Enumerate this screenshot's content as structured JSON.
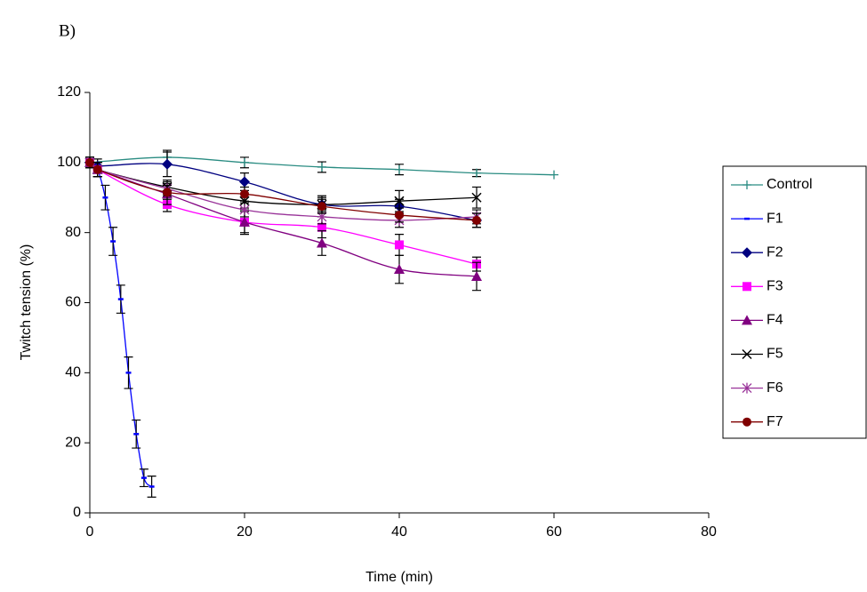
{
  "chart_data": {
    "type": "line",
    "panel_label": "B)",
    "x_label": "Time (min)",
    "y_label": "Twitch tension (%)",
    "xlim": [
      0,
      80
    ],
    "xticks": [
      0,
      20,
      40,
      60,
      80
    ],
    "ylim": [
      0,
      120
    ],
    "yticks": [
      0,
      20,
      40,
      60,
      80,
      100,
      120
    ],
    "legend": "right",
    "series": [
      {
        "name": "Control",
        "color": "#2a8c82",
        "marker": "plus",
        "x": [
          0,
          10,
          20,
          30,
          40,
          50,
          60
        ],
        "values": [
          100,
          101.5,
          100,
          98.7,
          98,
          97,
          96.5
        ],
        "errors": [
          1.5,
          2,
          1.5,
          1.5,
          1.5,
          1,
          null
        ]
      },
      {
        "name": "F1",
        "color": "#0000ff",
        "marker": "dash",
        "x": [
          0,
          1,
          2,
          3,
          4,
          5,
          6,
          7,
          8
        ],
        "values": [
          100,
          98,
          90,
          77.5,
          61,
          40,
          22.5,
          10,
          7.5
        ],
        "errors": [
          1.5,
          2,
          3.5,
          4,
          4,
          4.5,
          4,
          2.5,
          3
        ]
      },
      {
        "name": "F2",
        "color": "#000080",
        "marker": "diamond",
        "x": [
          0,
          1,
          10,
          20,
          30,
          40,
          50
        ],
        "values": [
          100,
          99,
          99.5,
          94.5,
          88,
          87.5,
          83.5
        ],
        "errors": [
          1.5,
          2,
          3.5,
          2.5,
          2,
          2,
          2
        ]
      },
      {
        "name": "F3",
        "color": "#ff00ff",
        "marker": "square",
        "x": [
          0,
          1,
          10,
          20,
          30,
          40,
          50
        ],
        "values": [
          100,
          98,
          88,
          83,
          81.5,
          76.5,
          71
        ],
        "errors": [
          1.5,
          2,
          2,
          3,
          3,
          3,
          2
        ]
      },
      {
        "name": "F4",
        "color": "#800080",
        "marker": "triangle",
        "x": [
          0,
          1,
          10,
          20,
          30,
          40,
          50
        ],
        "values": [
          100,
          98,
          91,
          83,
          77,
          69.5,
          67.5
        ],
        "errors": [
          1.5,
          2,
          3,
          3.5,
          3.5,
          4,
          4
        ]
      },
      {
        "name": "F5",
        "color": "#000000",
        "marker": "x",
        "x": [
          0,
          1,
          10,
          20,
          30,
          40,
          50
        ],
        "values": [
          100,
          98,
          93,
          89,
          88,
          89,
          90
        ],
        "errors": [
          1.5,
          2,
          2,
          2,
          2.5,
          3,
          3
        ]
      },
      {
        "name": "F6",
        "color": "#993399",
        "marker": "asterisk",
        "x": [
          0,
          1,
          10,
          20,
          30,
          40,
          50
        ],
        "values": [
          100,
          98,
          92.5,
          86.5,
          84.5,
          83.5,
          84.5
        ],
        "errors": [
          1.5,
          2,
          2,
          2,
          2,
          2,
          2
        ]
      },
      {
        "name": "F7",
        "color": "#800000",
        "marker": "circle",
        "x": [
          0,
          1,
          10,
          20,
          30,
          40,
          50
        ],
        "values": [
          100,
          98,
          91.5,
          91,
          87.5,
          85,
          83.5
        ],
        "errors": [
          1.5,
          2,
          2,
          2,
          2,
          2,
          2
        ]
      }
    ]
  }
}
